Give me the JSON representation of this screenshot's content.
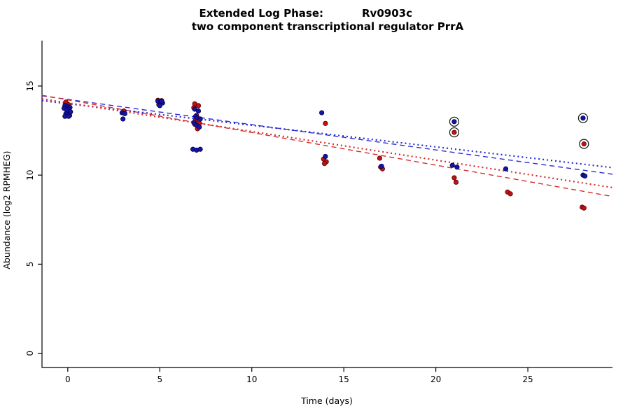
{
  "window": {
    "background": "#ffffff"
  },
  "chart_data": {
    "type": "scatter",
    "title": "Extended Log Phase:      Rv0903c",
    "title_prefix": "Extended Log Phase:",
    "title_gene": "Rv0903c",
    "subtitle": "two component transcriptional regulator PrrA",
    "xlabel": "Time  (days)",
    "ylabel": "Abundance  (log2 RPMHEG)",
    "xlim": [
      -1.4,
      29.6
    ],
    "ylim": [
      -0.8,
      17.0
    ],
    "xticks": [
      0,
      5,
      10,
      15,
      20,
      25
    ],
    "yticks": [
      0,
      5,
      10,
      15
    ],
    "grid": false,
    "legend": "none",
    "axis_color": "#000000",
    "point_radius": 3.2,
    "series": [
      {
        "name": "red",
        "point_color": "#c41111",
        "point_stroke": "#5a0000",
        "points": [
          [
            -0.1,
            14.1
          ],
          [
            0.05,
            13.95
          ],
          [
            -0.15,
            13.88
          ],
          [
            0.1,
            13.6
          ],
          [
            3.05,
            13.6
          ],
          [
            4.9,
            14.2
          ],
          [
            5.1,
            14.18
          ],
          [
            5.0,
            14.1
          ],
          [
            4.95,
            13.95
          ],
          [
            6.9,
            14.0
          ],
          [
            7.1,
            13.9
          ],
          [
            6.85,
            13.78
          ],
          [
            7.0,
            13.35
          ],
          [
            6.95,
            13.1
          ],
          [
            7.15,
            12.92
          ],
          [
            6.9,
            12.85
          ],
          [
            7.05,
            12.6
          ],
          [
            14.0,
            12.9
          ],
          [
            13.9,
            10.9
          ],
          [
            14.05,
            10.75
          ],
          [
            13.95,
            10.65
          ],
          [
            16.95,
            10.95
          ],
          [
            17.0,
            10.45
          ],
          [
            17.1,
            10.35
          ],
          [
            21.0,
            9.85
          ],
          [
            21.1,
            9.6
          ],
          [
            23.9,
            9.05
          ],
          [
            24.05,
            8.95
          ],
          [
            27.95,
            8.2
          ],
          [
            28.05,
            8.15
          ]
        ]
      },
      {
        "name": "blue",
        "point_color": "#1414a8",
        "point_stroke": "#00004a",
        "points": [
          [
            -0.15,
            13.9
          ],
          [
            0.0,
            13.85
          ],
          [
            0.12,
            13.8
          ],
          [
            -0.2,
            13.75
          ],
          [
            0.05,
            13.7
          ],
          [
            -0.05,
            13.65
          ],
          [
            0.15,
            13.55
          ],
          [
            -0.1,
            13.45
          ],
          [
            0.0,
            13.4
          ],
          [
            0.1,
            13.35
          ],
          [
            -0.15,
            13.3
          ],
          [
            0.05,
            13.3
          ],
          [
            2.95,
            13.5
          ],
          [
            3.1,
            13.45
          ],
          [
            3.0,
            13.15
          ],
          [
            4.9,
            14.15
          ],
          [
            5.05,
            14.1
          ],
          [
            5.15,
            14.05
          ],
          [
            5.0,
            13.9
          ],
          [
            5.1,
            14.15
          ],
          [
            6.9,
            13.7
          ],
          [
            7.1,
            13.6
          ],
          [
            6.95,
            13.3
          ],
          [
            7.05,
            13.2
          ],
          [
            7.2,
            13.15
          ],
          [
            6.85,
            12.95
          ],
          [
            7.0,
            12.8
          ],
          [
            7.15,
            12.7
          ],
          [
            6.8,
            11.45
          ],
          [
            7.0,
            11.4
          ],
          [
            7.2,
            11.45
          ],
          [
            13.8,
            13.5
          ],
          [
            14.0,
            11.05
          ],
          [
            17.05,
            10.5
          ],
          [
            20.9,
            10.55
          ],
          [
            21.15,
            10.45
          ],
          [
            23.8,
            10.35
          ],
          [
            28.0,
            10.0
          ],
          [
            28.1,
            9.95
          ]
        ]
      }
    ],
    "circled_outliers": [
      {
        "x": 21.0,
        "y": 13.0,
        "series": "blue"
      },
      {
        "x": 21.0,
        "y": 12.4,
        "series": "red"
      },
      {
        "x": 28.0,
        "y": 13.2,
        "series": "blue"
      },
      {
        "x": 28.05,
        "y": 11.75,
        "series": "red"
      }
    ],
    "trend_lines": [
      {
        "name": "blue-dashed-fit",
        "style": "dashed",
        "color": "#2b2bd6",
        "width": 1.4,
        "dash": "7,5",
        "x": [
          -1.4,
          29.6
        ],
        "y": [
          14.45,
          10.05
        ]
      },
      {
        "name": "red-dashed-fit",
        "style": "dashed",
        "color": "#d62b2b",
        "width": 1.4,
        "dash": "7,5",
        "x": [
          -1.4,
          29.6
        ],
        "y": [
          14.48,
          8.8
        ]
      },
      {
        "name": "blue-dotted-fit",
        "style": "dotted",
        "color": "#2b2bd6",
        "width": 2.2,
        "dash": "2,4",
        "x": [
          -1.4,
          29.6
        ],
        "y": [
          14.18,
          10.42
        ]
      },
      {
        "name": "red-dotted-fit",
        "style": "dotted",
        "color": "#d62b2b",
        "width": 2.2,
        "dash": "2,4",
        "x": [
          -1.4,
          29.6
        ],
        "y": [
          14.28,
          9.3
        ]
      }
    ]
  }
}
